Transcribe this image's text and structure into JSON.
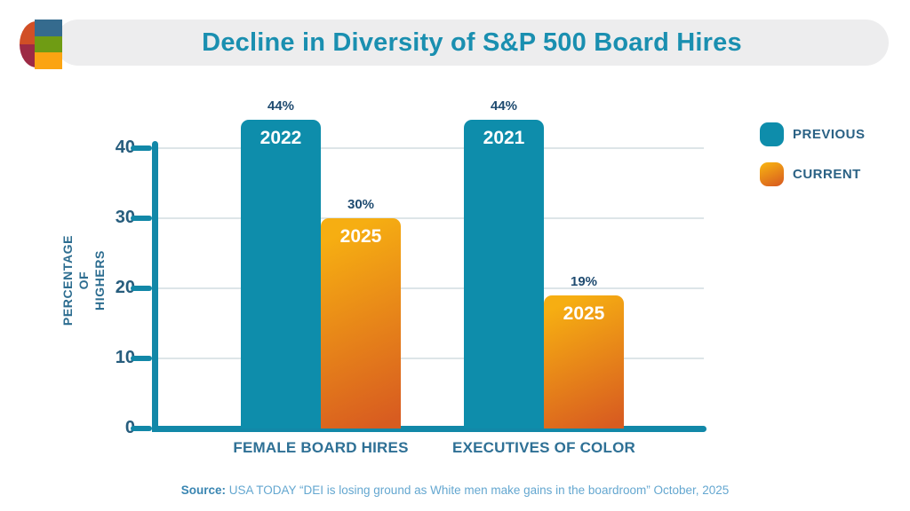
{
  "header": {
    "title": "Decline in Diversity of S&P 500 Board Hires"
  },
  "logo": {
    "disc_top_color": "#d14f26",
    "disc_bottom_color": "#9d2a45",
    "square_colors": [
      "#356b8e",
      "#6f9c14",
      "#fba412"
    ]
  },
  "palette": {
    "title_teal": "#1a8fb0",
    "axis_teal": "#1288a8",
    "gridline_gray": "#dde5e8",
    "label_blue": "#2e7095",
    "value_label_navy": "#1f4b70",
    "header_band_gray": "#ededee"
  },
  "chart_data": {
    "type": "bar",
    "title": "Decline in Diversity of S&P 500 Board Hires",
    "xlabel": "",
    "ylabel_lines": "PERCENTAGE OF\nHIGHERS",
    "ylim": [
      0,
      40
    ],
    "yticks": [
      0,
      10,
      20,
      30,
      40
    ],
    "grid": true,
    "legend_position": "right",
    "series": [
      {
        "name": "PREVIOUS",
        "color": "#0e8dab"
      },
      {
        "name": "CURRENT",
        "gradient_from": "#f6ae12",
        "gradient_to": "#d85c20"
      }
    ],
    "categories": [
      "FEMALE BOARD HIRES",
      "EXECUTIVES OF COLOR"
    ],
    "groups": [
      {
        "category": "FEMALE BOARD HIRES",
        "bars": [
          {
            "series": "PREVIOUS",
            "year": "2022",
            "value": 44,
            "label": "44%"
          },
          {
            "series": "CURRENT",
            "year": "2025",
            "value": 30,
            "label": "30%"
          }
        ]
      },
      {
        "category": "EXECUTIVES OF COLOR",
        "bars": [
          {
            "series": "PREVIOUS",
            "year": "2021",
            "value": 44,
            "label": "44%"
          },
          {
            "series": "CURRENT",
            "year": "2025",
            "value": 19,
            "label": "19%"
          }
        ]
      }
    ]
  },
  "source": {
    "prefix": "Source:",
    "text": " USA TODAY “DEI is losing ground as White men make gains in the boardroom” October, 2025"
  }
}
